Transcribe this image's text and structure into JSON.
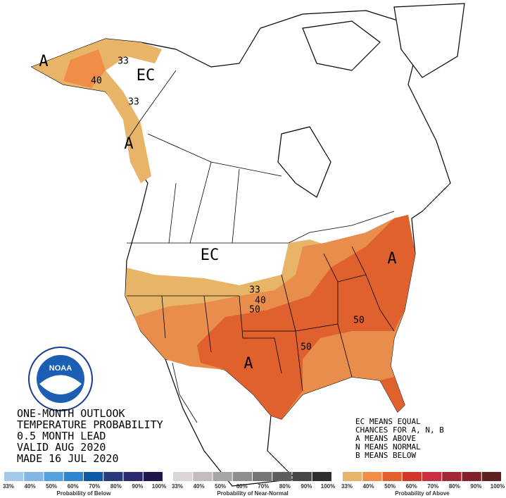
{
  "outlook_text": [
    "ONE-MONTH OUTLOOK",
    "TEMPERATURE PROBABILITY",
    "0.5 MONTH LEAD",
    "VALID AUG 2020",
    "MADE 16 JUL 2020"
  ],
  "legend_notes": [
    "EC MEANS EQUAL",
    "CHANCES FOR A, N, B",
    "A MEANS ABOVE",
    "N MEANS NORMAL",
    "B MEANS BELOW"
  ],
  "logo": {
    "text": "NOAA"
  },
  "map_labels": [
    "A",
    "EC",
    "33",
    "40",
    "33",
    "A",
    "EC",
    "A",
    "33",
    "40",
    "50",
    "50",
    "50",
    "A"
  ],
  "scales": [
    {
      "title": "Probability of Below",
      "colors": [
        "#a7c9e9",
        "#83b6e4",
        "#55a2e0",
        "#2f86cf",
        "#0c5aa5",
        "#283b7c",
        "#2b2a6e",
        "#1f174c"
      ],
      "labels": [
        "33%",
        "40%",
        "50%",
        "60%",
        "70%",
        "80%",
        "90%",
        "100%"
      ]
    },
    {
      "title": "Probability of Near-Normal",
      "colors": [
        "#ddd6d6",
        "#c2bcbc",
        "#a8a5a5",
        "#8f8d8d",
        "#777575",
        "#5e5d5d",
        "#474646",
        "#2e2e2e"
      ],
      "labels": [
        "33%",
        "40%",
        "50%",
        "60%",
        "70%",
        "80%",
        "90%",
        "100%"
      ]
    },
    {
      "title": "Probability of Above",
      "colors": [
        "#e8b468",
        "#f08d48",
        "#e0602e",
        "#d0392a",
        "#c92f42",
        "#a12838",
        "#82202e",
        "#602020"
      ],
      "labels": [
        "33%",
        "40%",
        "50%",
        "60%",
        "70%",
        "80%",
        "90%",
        "100%"
      ]
    }
  ]
}
